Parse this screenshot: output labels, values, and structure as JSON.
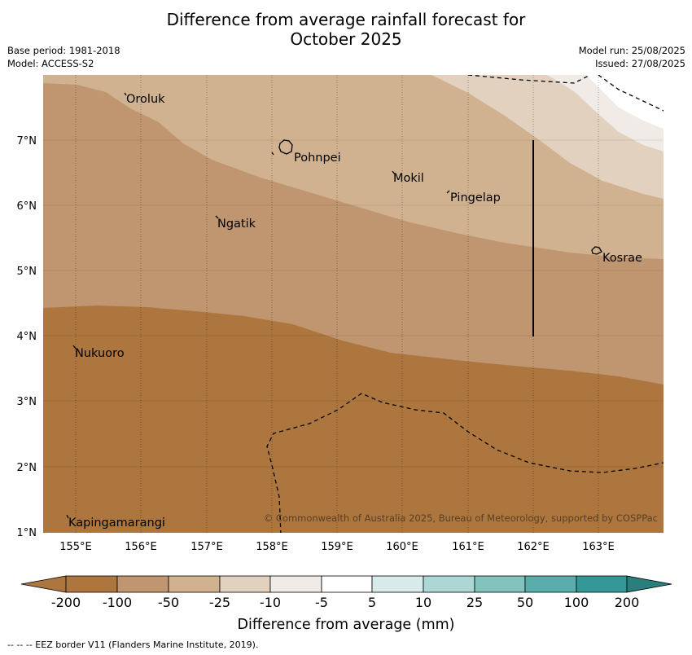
{
  "title": {
    "line1": "Difference from average rainfall forecast for",
    "line2": "October 2025"
  },
  "meta": {
    "base_period": "Base period: 1981-2018",
    "model": "Model: ACCESS-S2",
    "model_run": "Model run: 25/08/2025",
    "issued": "Issued: 27/08/2025"
  },
  "map": {
    "lon_ticks": [
      "155°E",
      "156°E",
      "157°E",
      "158°E",
      "159°E",
      "160°E",
      "161°E",
      "162°E",
      "163°E"
    ],
    "lat_ticks": [
      "1°N",
      "2°N",
      "3°N",
      "4°N",
      "5°N",
      "6°N",
      "7°N"
    ],
    "places": [
      "Oroluk",
      "Pohnpei",
      "Mokil",
      "Pingelap",
      "Ngatik",
      "Kosrae",
      "Nukuoro",
      "Kapingamarangi"
    ],
    "copyright": "© Commonwealth of Australia 2025, Bureau of Meteorology, supported by COSPPac"
  },
  "colorbar": {
    "tick_labels": [
      "-200",
      "-100",
      "-50",
      "-25",
      "-10",
      "-5",
      "5",
      "10",
      "25",
      "50",
      "100",
      "200"
    ],
    "colors": [
      "#ad763e",
      "#ad763e",
      "#c09670",
      "#d0b291",
      "#e2d1bf",
      "#f0ebe6",
      "#ffffff",
      "#d7ebea",
      "#acd7d5",
      "#82c2bf",
      "#59adaa",
      "#349896",
      "#2a7f7c"
    ],
    "label": "Difference from average (mm)"
  },
  "footer": "--  --  -- EEZ border V11 (Flanders Marine Institute, 2019)."
}
